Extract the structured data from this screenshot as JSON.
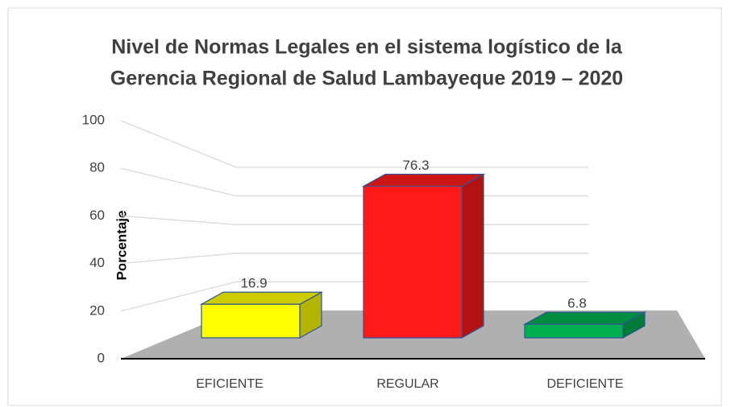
{
  "chart_data": {
    "type": "bar3d",
    "title": [
      "Nivel de Normas Legales en el sistema logístico de la",
      "Gerencia Regional de Salud Lambayeque 2019 – 2020"
    ],
    "ylabel": "Porcentaje",
    "categories": [
      "EFICIENTE",
      "REGULAR",
      "DEFICIENTE"
    ],
    "values": [
      16.9,
      76.3,
      6.8
    ],
    "colors": [
      "#ffff00",
      "#ff1a1a",
      "#00b050"
    ],
    "ylim": [
      0,
      100
    ],
    "yticks": [
      0,
      20,
      40,
      60,
      80,
      100
    ],
    "grid": true
  }
}
